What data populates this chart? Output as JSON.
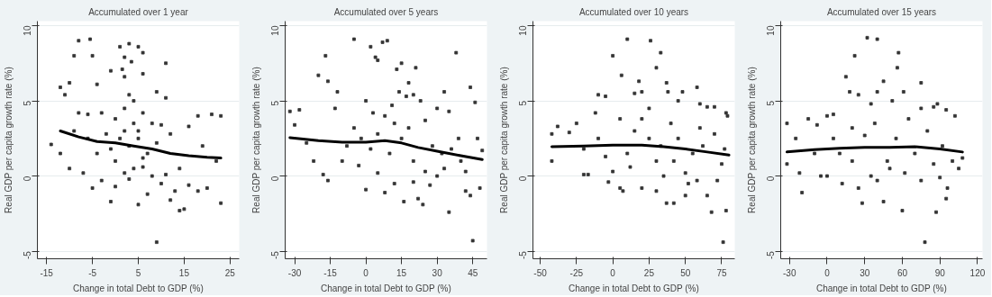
{
  "chart_data": [
    {
      "type": "scatter",
      "title": "Accumulated over 1 year",
      "xlabel": "Change in total Debt to GDP (%)",
      "ylabel": "Real GDP per capita growth rate (%)",
      "xlim": [
        -17,
        27
      ],
      "xticks": [
        -15,
        -5,
        5,
        15,
        25
      ],
      "ylim": [
        -5.5,
        10.3
      ],
      "yticks": [
        -5,
        0,
        5,
        10
      ],
      "grid": "y",
      "marker": "square",
      "series": [
        {
          "type": "scatter",
          "color": "#333333",
          "x": [
            -8,
            -5.5,
            -9,
            -5,
            1,
            3,
            2,
            3.5,
            5,
            6,
            11,
            -1,
            1.5,
            2,
            6,
            -12,
            -10,
            -11,
            -4,
            3,
            9,
            11,
            -14,
            -12,
            -10,
            -7,
            -5,
            -1,
            5,
            9,
            14,
            15,
            12,
            23,
            20,
            18,
            23,
            21,
            18,
            16,
            19,
            22,
            -8,
            -6,
            -3,
            0,
            2,
            4,
            6,
            8,
            10,
            12,
            0,
            2,
            4,
            6,
            8,
            10,
            13,
            1,
            3,
            5,
            7,
            9,
            -2,
            -4,
            -6,
            -9,
            14,
            16,
            -3,
            0,
            3,
            7,
            11,
            5,
            4,
            2,
            -1,
            6
          ],
          "values": [
            9,
            9.1,
            8,
            8,
            8.6,
            8.8,
            7.9,
            7.6,
            8.6,
            8.2,
            7.5,
            7,
            7.1,
            6.6,
            6.8,
            5.9,
            6.2,
            5.4,
            6.1,
            5.4,
            5.6,
            5.2,
            2.1,
            1.5,
            0.5,
            0.2,
            -0.8,
            -1.7,
            -1.9,
            -4.4,
            -2.3,
            -2.2,
            -1.6,
            -1.8,
            -0.8,
            -1,
            4,
            4.1,
            4,
            3.3,
            2,
            1,
            4.2,
            4.1,
            4.2,
            3.8,
            4.5,
            5,
            4.2,
            3.5,
            3.4,
            2.8,
            1,
            0.2,
            0.5,
            1.2,
            0,
            -0.5,
            -1,
            2.5,
            2,
            3,
            1.5,
            2.2,
            2.8,
            1.5,
            2.5,
            3,
            0.5,
            -0.6,
            -0.3,
            -0.7,
            -0.2,
            -1.2,
            0.1,
            2.5,
            3.5,
            3,
            1.8,
            0.6
          ]
        },
        {
          "type": "line",
          "color": "#000000",
          "marker": "none",
          "x": [
            -12,
            -8,
            -4,
            0,
            4,
            8,
            12,
            16,
            20,
            23
          ],
          "values": [
            3,
            2.6,
            2.3,
            2.2,
            2,
            1.8,
            1.5,
            1.35,
            1.25,
            1.2
          ]
        }
      ]
    },
    {
      "type": "scatter",
      "title": "Accumulated over 5 years",
      "xlabel": "Change in total Debt to GDP (%)",
      "ylabel": "Real GDP per capita growth rate (%)",
      "xlim": [
        -34,
        51
      ],
      "xticks": [
        -30,
        -15,
        0,
        15,
        30,
        45
      ],
      "ylim": [
        -5.5,
        10.3
      ],
      "yticks": [
        -5,
        0,
        5,
        10
      ],
      "grid": "y",
      "marker": "square",
      "series": [
        {
          "type": "scatter",
          "color": "#333333",
          "x": [
            -32,
            -28,
            -30,
            -25,
            -22,
            -20,
            -17,
            -16,
            -12,
            -13,
            -18,
            -16,
            -10,
            -5,
            0,
            2,
            4,
            5,
            7,
            9,
            13,
            15,
            18,
            21,
            20,
            14,
            17,
            23,
            33,
            38,
            44,
            46,
            45,
            35,
            44,
            42,
            48,
            47,
            49,
            42,
            11,
            8,
            3,
            -5,
            -8,
            -3,
            0,
            5,
            8,
            12,
            16,
            20,
            22,
            24,
            27,
            30,
            33,
            36,
            39,
            30,
            35,
            25,
            18,
            15,
            10,
            5,
            2,
            -2,
            12,
            20,
            25,
            28,
            32,
            40
          ],
          "values": [
            4.3,
            4.4,
            3.4,
            2.2,
            1,
            6.7,
            8,
            6.3,
            5.6,
            4.5,
            0.1,
            -0.3,
            1,
            9.1,
            5,
            8.6,
            7.9,
            7.7,
            8.9,
            9,
            7.1,
            7.5,
            6.2,
            7.2,
            5.4,
            5.6,
            5.3,
            5,
            5.6,
            8.2,
            5.9,
            4.9,
            -4.3,
            -2.4,
            -1.3,
            -1,
            -0.8,
            2.5,
            1.7,
            0.3,
            4.7,
            4,
            4.2,
            3.2,
            2,
            0.7,
            -0.9,
            0.2,
            -1.1,
            -0.5,
            -1.7,
            -0.4,
            -1.5,
            -1.9,
            -0.6,
            0,
            0.5,
            1.8,
            2.5,
            4.5,
            4.3,
            3.7,
            3.2,
            2.5,
            1.5,
            2.8,
            1.8,
            2.5,
            3.5,
            1,
            0.3,
            2,
            1.5,
            1
          ]
        },
        {
          "type": "line",
          "color": "#000000",
          "marker": "none",
          "x": [
            -32,
            -20,
            -10,
            0,
            8,
            15,
            22,
            30,
            40,
            49
          ],
          "values": [
            2.55,
            2.35,
            2.25,
            2.25,
            2.35,
            2.2,
            1.9,
            1.65,
            1.35,
            1.1
          ]
        }
      ]
    },
    {
      "type": "scatter",
      "title": "Accumulated over 10 years",
      "xlabel": "Change in total Debt to GDP (%)",
      "ylabel": "Real GDP per capita growth rate (%)",
      "xlim": [
        -55,
        84
      ],
      "xticks": [
        -50,
        -25,
        0,
        25,
        50,
        75
      ],
      "ylim": [
        -5.5,
        10.3
      ],
      "yticks": [
        -5,
        0,
        5,
        10
      ],
      "grid": "y",
      "marker": "square",
      "series": [
        {
          "type": "scatter",
          "color": "#333333",
          "x": [
            -42,
            -42,
            -38,
            -30,
            -25,
            -20,
            -17,
            -10,
            -12,
            0,
            -5,
            6,
            10,
            18,
            15,
            20,
            26,
            30,
            33,
            37,
            38,
            48,
            45,
            58,
            60,
            65,
            70,
            78,
            79,
            76,
            68,
            78,
            65,
            50,
            42,
            37,
            30,
            20,
            5,
            7,
            -3,
            0,
            10,
            15,
            20,
            25,
            30,
            35,
            40,
            45,
            50,
            55,
            60,
            70,
            75,
            72,
            77,
            -20,
            -10,
            -5,
            5,
            12,
            25,
            33,
            42,
            52,
            58,
            62
          ],
          "values": [
            1,
            2.8,
            3.3,
            2.9,
            3.5,
            0.1,
            0.1,
            5.4,
            4.2,
            8,
            5.3,
            6.7,
            9.1,
            6.3,
            5.5,
            5.6,
            9,
            7.2,
            8.2,
            6.2,
            5.6,
            5.6,
            5,
            5.9,
            4.8,
            4.6,
            4.6,
            4.2,
            4,
            -4.4,
            -2.4,
            -2.3,
            -1.3,
            -1.3,
            -1.8,
            -1.8,
            -1,
            -0.8,
            -0.8,
            -1,
            -0.4,
            0.3,
            1.5,
            3,
            3.8,
            2.5,
            1,
            0,
            3.5,
            2.5,
            0.2,
            1.5,
            3.2,
            2.8,
            0.8,
            -0.3,
            1.8,
            1.8,
            2.5,
            1.3,
            3.8,
            0.6,
            4.5,
            2,
            1,
            -0.5,
            -0.3,
            2
          ]
        },
        {
          "type": "line",
          "color": "#000000",
          "marker": "none",
          "x": [
            -42,
            -20,
            0,
            20,
            35,
            50,
            65,
            80
          ],
          "values": [
            1.95,
            2,
            2.05,
            2.05,
            1.95,
            1.8,
            1.6,
            1.4
          ]
        }
      ]
    },
    {
      "type": "scatter",
      "title": "Accumulated over 15 years",
      "xlabel": "Change in total Debt to GDP (%)",
      "ylabel": "Real GDP per capita growth rate (%)",
      "xlim": [
        -37,
        124
      ],
      "xticks": [
        -30,
        0,
        30,
        60,
        90,
        120
      ],
      "ylim": [
        -5.5,
        10.3
      ],
      "yticks": [
        -5,
        0,
        5,
        10
      ],
      "grid": "y",
      "marker": "square",
      "series": [
        {
          "type": "scatter",
          "color": "#333333",
          "x": [
            -32,
            -32,
            -25,
            -20,
            -22,
            -15,
            -8,
            -5,
            0,
            5,
            15,
            18,
            22,
            25,
            32,
            40,
            35,
            40,
            45,
            52,
            56,
            57,
            61,
            75,
            75,
            85,
            88,
            95,
            102,
            96,
            95,
            87,
            78,
            60,
            45,
            28,
            25,
            12,
            0,
            10,
            20,
            30,
            38,
            48,
            55,
            62,
            70,
            80,
            85,
            92,
            100,
            105,
            108,
            35,
            40,
            50,
            65,
            75,
            20,
            5,
            -10,
            90
          ],
          "values": [
            3.5,
            0.8,
            2.5,
            -1.1,
            0.2,
            3.8,
            3.4,
            0,
            4,
            4.1,
            6.6,
            5.6,
            8,
            5.4,
            9.2,
            9.1,
            4.8,
            5.6,
            6.3,
            5,
            7.2,
            8.2,
            5.6,
            6.2,
            4.5,
            4.6,
            4.8,
            4.4,
            4,
            -0.8,
            -1.5,
            -2.4,
            -4.4,
            -2.3,
            -1.7,
            -1.8,
            -0.8,
            -0.5,
            0,
            1.5,
            3.2,
            2.7,
            3.5,
            1,
            2.5,
            0.2,
            1.5,
            3,
            0.8,
            2,
            1,
            0.5,
            1.2,
            0,
            -0.3,
            0.5,
            3.8,
            -0.3,
            1,
            2.5,
            1.5,
            -0.1
          ]
        },
        {
          "type": "line",
          "color": "#000000",
          "marker": "none",
          "x": [
            -32,
            -10,
            10,
            30,
            50,
            70,
            90,
            108
          ],
          "values": [
            1.6,
            1.75,
            1.85,
            1.9,
            1.9,
            1.95,
            1.8,
            1.6
          ]
        }
      ]
    }
  ]
}
